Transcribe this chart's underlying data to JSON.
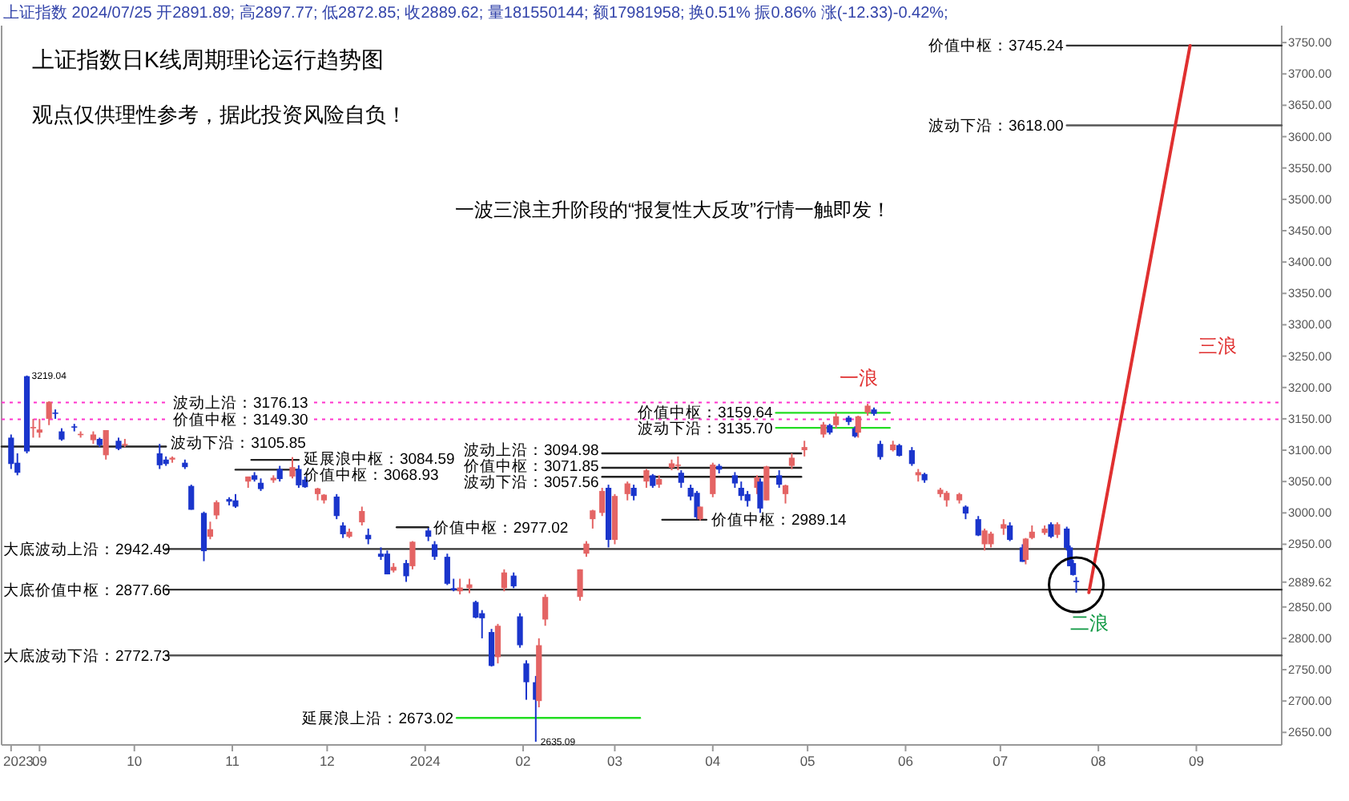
{
  "chart_data": {
    "type": "candlestick",
    "title": "上证指数日K线周期理论运行趋势图",
    "subtitle": "观点仅供理性参考，据此投资风险自负！",
    "x": [
      "2023-08-23",
      "2023-08-25",
      "2023-08-28",
      "2023-08-30",
      "2023-09-01",
      "2023-09-04",
      "2023-09-06",
      "2023-09-08",
      "2023-09-12",
      "2023-09-14",
      "2023-09-18",
      "2023-09-20",
      "2023-09-22",
      "2023-09-26",
      "2023-09-28",
      "2023-10-09",
      "2023-10-11",
      "2023-10-13",
      "2023-10-17",
      "2023-10-19",
      "2023-10-23",
      "2023-10-25",
      "2023-10-27",
      "2023-10-31",
      "2023-11-02",
      "2023-11-06",
      "2023-11-08",
      "2023-11-10",
      "2023-11-14",
      "2023-11-16",
      "2023-11-20",
      "2023-11-22",
      "2023-11-24",
      "2023-11-28",
      "2023-11-30",
      "2023-12-04",
      "2023-12-06",
      "2023-12-08",
      "2023-12-12",
      "2023-12-14",
      "2023-12-18",
      "2023-12-20",
      "2023-12-22",
      "2023-12-26",
      "2023-12-28",
      "2024-01-02",
      "2024-01-04",
      "2024-01-08",
      "2024-01-10",
      "2024-01-12",
      "2024-01-15",
      "2024-01-17",
      "2024-01-19",
      "2024-01-22",
      "2024-01-24",
      "2024-01-26",
      "2024-01-29",
      "2024-01-31",
      "2024-02-02",
      "2024-02-05",
      "2024-02-06",
      "2024-02-08",
      "2024-02-19",
      "2024-02-21",
      "2024-02-23",
      "2024-02-26",
      "2024-02-28",
      "2024-03-01",
      "2024-03-05",
      "2024-03-07",
      "2024-03-11",
      "2024-03-13",
      "2024-03-15",
      "2024-03-19",
      "2024-03-21",
      "2024-03-22",
      "2024-03-25",
      "2024-03-27",
      "2024-03-28",
      "2024-04-01",
      "2024-04-03",
      "2024-04-08",
      "2024-04-10",
      "2024-04-12",
      "2024-04-15",
      "2024-04-16",
      "2024-04-18",
      "2024-04-22",
      "2024-04-24",
      "2024-04-26",
      "2024-04-30",
      "2024-05-06",
      "2024-05-08",
      "2024-05-10",
      "2024-05-14",
      "2024-05-16",
      "2024-05-17",
      "2024-05-20",
      "2024-05-22",
      "2024-05-24",
      "2024-05-28",
      "2024-05-30",
      "2024-06-03",
      "2024-06-05",
      "2024-06-07",
      "2024-06-12",
      "2024-06-14",
      "2024-06-18",
      "2024-06-20",
      "2024-06-24",
      "2024-06-26",
      "2024-06-28",
      "2024-07-02",
      "2024-07-04",
      "2024-07-08",
      "2024-07-09",
      "2024-07-11",
      "2024-07-15",
      "2024-07-17",
      "2024-07-19",
      "2024-07-22",
      "2024-07-23",
      "2024-07-24",
      "2024-07-25"
    ],
    "ohlc": [
      [
        3120,
        3125,
        3070,
        3078
      ],
      [
        3080,
        3095,
        3060,
        3064
      ],
      [
        3218,
        3219.04,
        3095,
        3098
      ],
      [
        3135,
        3150,
        3120,
        3137
      ],
      [
        3128,
        3150,
        3120,
        3133
      ],
      [
        3150,
        3178,
        3140,
        3177
      ],
      [
        3160,
        3165,
        3150,
        3158
      ],
      [
        3130,
        3135,
        3115,
        3117
      ],
      [
        3138,
        3142,
        3130,
        3137
      ],
      [
        3125,
        3130,
        3120,
        3126
      ],
      [
        3116,
        3130,
        3110,
        3125
      ],
      [
        3118,
        3120,
        3105,
        3108
      ],
      [
        3092,
        3132,
        3085,
        3132
      ],
      [
        3115,
        3120,
        3100,
        3102
      ],
      [
        3108,
        3118,
        3105,
        3110
      ],
      [
        3095,
        3110,
        3070,
        3076
      ],
      [
        3085,
        3090,
        3075,
        3078
      ],
      [
        3085,
        3090,
        3080,
        3088
      ],
      [
        3080,
        3085,
        3070,
        3073
      ],
      [
        3043,
        3045,
        3005,
        3005
      ],
      [
        3000,
        3002,
        2923,
        2939
      ],
      [
        2962,
        2986,
        2958,
        2974
      ],
      [
        2996,
        3020,
        2990,
        3017
      ],
      [
        3022,
        3025,
        3012,
        3018
      ],
      [
        3020,
        3030,
        3008,
        3010
      ],
      [
        3050,
        3058,
        3040,
        3058
      ],
      [
        3060,
        3065,
        3050,
        3053
      ],
      [
        3048,
        3055,
        3035,
        3038
      ],
      [
        3052,
        3060,
        3048,
        3056
      ],
      [
        3070,
        3075,
        3050,
        3054
      ],
      [
        3058,
        3089,
        3055,
        3073
      ],
      [
        3070,
        3076,
        3040,
        3044
      ],
      [
        3053,
        3058,
        3040,
        3041
      ],
      [
        3030,
        3040,
        3020,
        3039
      ],
      [
        3020,
        3030,
        3015,
        3029
      ],
      [
        3026,
        3030,
        2990,
        2995
      ],
      [
        2980,
        2985,
        2960,
        2966
      ],
      [
        2962,
        2975,
        2960,
        2970
      ],
      [
        2985,
        3010,
        2980,
        3003
      ],
      [
        2965,
        2975,
        2950,
        2958
      ],
      [
        2935,
        2945,
        2925,
        2930
      ],
      [
        2935,
        2940,
        2902,
        2902
      ],
      [
        2908,
        2920,
        2905,
        2914
      ],
      [
        2920,
        2925,
        2890,
        2899
      ],
      [
        2915,
        2955,
        2910,
        2954
      ],
      [
        2972,
        2976,
        2955,
        2962
      ],
      [
        2950,
        2955,
        2925,
        2930
      ],
      [
        2930,
        2935,
        2885,
        2887
      ],
      [
        2880,
        2895,
        2875,
        2877
      ],
      [
        2875,
        2895,
        2870,
        2881
      ],
      [
        2880,
        2895,
        2872,
        2886
      ],
      [
        2858,
        2860,
        2832,
        2833
      ],
      [
        2840,
        2845,
        2800,
        2832
      ],
      [
        2810,
        2815,
        2755,
        2756
      ],
      [
        2770,
        2823,
        2760,
        2820
      ],
      [
        2880,
        2910,
        2875,
        2905
      ],
      [
        2900,
        2905,
        2880,
        2883
      ],
      [
        2835,
        2840,
        2785,
        2789
      ],
      [
        2760,
        2765,
        2702,
        2730
      ],
      [
        2730,
        2740,
        2635.09,
        2702
      ],
      [
        2700,
        2800,
        2690,
        2789
      ],
      [
        2830,
        2870,
        2820,
        2866
      ],
      [
        2866,
        2910,
        2860,
        2910
      ],
      [
        2935,
        2955,
        2930,
        2951
      ],
      [
        2990,
        3005,
        2975,
        3004
      ],
      [
        3000,
        3040,
        2995,
        3035
      ],
      [
        3040,
        3045,
        2945,
        2957
      ],
      [
        2957,
        3030,
        2950,
        3027
      ],
      [
        3030,
        3050,
        3020,
        3047
      ],
      [
        3040,
        3045,
        3020,
        3027
      ],
      [
        3050,
        3070,
        3040,
        3068
      ],
      [
        3060,
        3062,
        3040,
        3043
      ],
      [
        3045,
        3060,
        3040,
        3054
      ],
      [
        3072,
        3085,
        3068,
        3079
      ],
      [
        3075,
        3090,
        3068,
        3077
      ],
      [
        3064,
        3068,
        3040,
        3048
      ],
      [
        3040,
        3045,
        3020,
        3026
      ],
      [
        3032,
        3035,
        2990,
        2993
      ],
      [
        2990,
        3010,
        2988,
        3010
      ],
      [
        3030,
        3080,
        3025,
        3077
      ],
      [
        3075,
        3078,
        3063,
        3069
      ],
      [
        3060,
        3065,
        3040,
        3047
      ],
      [
        3040,
        3050,
        3020,
        3027
      ],
      [
        3030,
        3035,
        3010,
        3019
      ],
      [
        3040,
        3060,
        3030,
        3057
      ],
      [
        3050,
        3055,
        3000,
        3007
      ],
      [
        3020,
        3075,
        3020,
        3074
      ],
      [
        3060,
        3068,
        3040,
        3045
      ],
      [
        3030,
        3045,
        3015,
        3044
      ],
      [
        3075,
        3095,
        3070,
        3088
      ],
      [
        3100,
        3115,
        3090,
        3105
      ],
      [
        3125,
        3145,
        3120,
        3141
      ],
      [
        3140,
        3142,
        3125,
        3128
      ],
      [
        3140,
        3160,
        3135,
        3154
      ],
      [
        3152,
        3155,
        3140,
        3145
      ],
      [
        3135,
        3138,
        3120,
        3122
      ],
      [
        3128,
        3155,
        3120,
        3154
      ],
      [
        3160,
        3174,
        3155,
        3171
      ],
      [
        3165,
        3168,
        3155,
        3158
      ],
      [
        3110,
        3115,
        3085,
        3089
      ],
      [
        3100,
        3115,
        3098,
        3109
      ],
      [
        3108,
        3110,
        3090,
        3091
      ],
      [
        3100,
        3105,
        3075,
        3078
      ],
      [
        3060,
        3070,
        3050,
        3065
      ],
      [
        3062,
        3064,
        3048,
        3052
      ],
      [
        3030,
        3040,
        3025,
        3037
      ],
      [
        3020,
        3035,
        3010,
        3032
      ],
      [
        3020,
        3032,
        3015,
        3030
      ],
      [
        3010,
        3012,
        2990,
        2999
      ],
      [
        2990,
        2995,
        2963,
        2964
      ],
      [
        2950,
        2975,
        2940,
        2972
      ],
      [
        2950,
        2970,
        2945,
        2967
      ],
      [
        2975,
        2990,
        2965,
        2982
      ],
      [
        2980,
        2985,
        2955,
        2957
      ],
      [
        2945,
        2950,
        2922,
        2922
      ],
      [
        2925,
        2960,
        2918,
        2959
      ],
      [
        2960,
        2980,
        2958,
        2970
      ],
      [
        2968,
        2980,
        2965,
        2975
      ],
      [
        2982,
        2985,
        2960,
        2962
      ],
      [
        2965,
        2985,
        2960,
        2982
      ],
      [
        2975,
        2978,
        2940,
        2944
      ],
      [
        2945,
        2948,
        2915,
        2915
      ],
      [
        2920,
        2925,
        2900,
        2901
      ],
      [
        2891.89,
        2897.77,
        2872.85,
        2889.62
      ]
    ],
    "series": [
      {
        "type": "line",
        "x": [
          "2023-08-20",
          "2023-10-11"
        ],
        "values": [
          3105.85,
          3105.85
        ],
        "color": "#222222"
      },
      {
        "type": "line",
        "x": [
          "2023-11-07",
          "2023-11-22"
        ],
        "values": [
          3084.59,
          3084.59
        ],
        "color": "#222222"
      },
      {
        "type": "line",
        "x": [
          "2023-11-02",
          "2023-11-22"
        ],
        "values": [
          3068.93,
          3068.93
        ],
        "color": "#222222"
      },
      {
        "type": "line",
        "x": [
          "2023-12-23",
          "2024-01-02"
        ],
        "values": [
          2977.02,
          2977.02
        ],
        "color": "#222222"
      },
      {
        "type": "line",
        "x": [
          "2024-02-26",
          "2024-04-29"
        ],
        "values": [
          3094.98,
          3094.98
        ],
        "color": "#222222"
      },
      {
        "type": "line",
        "x": [
          "2024-02-26",
          "2024-04-29"
        ],
        "values": [
          3071.85,
          3071.85
        ],
        "color": "#222222"
      },
      {
        "type": "line",
        "x": [
          "2024-02-26",
          "2024-04-29"
        ],
        "values": [
          3057.56,
          3057.56
        ],
        "color": "#222222"
      },
      {
        "type": "line",
        "x": [
          "2024-03-16",
          "2024-03-30"
        ],
        "values": [
          2989.14,
          2989.14
        ],
        "color": "#222222"
      },
      {
        "type": "line",
        "x": [
          "2024-04-21",
          "2024-05-27"
        ],
        "values": [
          3159.64,
          3159.64
        ],
        "color": "#22dd22"
      },
      {
        "type": "line",
        "x": [
          "2024-04-21",
          "2024-05-27"
        ],
        "values": [
          3135.7,
          3135.7
        ],
        "color": "#22dd22"
      },
      {
        "type": "line",
        "x": [
          "2024-01-11",
          "2024-03-09"
        ],
        "values": [
          2673.02,
          2673.02
        ],
        "color": "#22dd22"
      },
      {
        "type": "line",
        "x": [
          "2023-10-11",
          "2024-09-28"
        ],
        "values": [
          2942.49,
          2942.49
        ],
        "color": "#333333"
      },
      {
        "type": "line",
        "x": [
          "2023-10-11",
          "2024-09-28"
        ],
        "values": [
          2877.66,
          2877.66
        ],
        "color": "#333333"
      },
      {
        "type": "line",
        "x": [
          "2023-10-11",
          "2024-09-28"
        ],
        "values": [
          2772.73,
          2772.73
        ],
        "color": "#555555"
      },
      {
        "type": "line",
        "x": [
          "2024-07-22",
          "2024-09-28"
        ],
        "values": [
          3745.24,
          3745.24
        ],
        "color": "#333333"
      },
      {
        "type": "line",
        "x": [
          "2024-07-22",
          "2024-09-28"
        ],
        "values": [
          3618.0,
          3618.0
        ],
        "color": "#555555"
      },
      {
        "type": "line",
        "x": [
          "2024-07-29",
          "2024-08-30"
        ],
        "values": [
          2873,
          3745
        ],
        "color": "#e03030"
      }
    ],
    "ref_lines": [
      {
        "axis": "y",
        "value": 3176.13,
        "label": "波动上沿：3176.13",
        "color": "#ff33cc",
        "line_style": "dotted"
      },
      {
        "axis": "y",
        "value": 3149.3,
        "label": "价值中枢：3149.30",
        "color": "#ff33cc",
        "line_style": "dotted"
      }
    ],
    "annotations": [
      "上证指数 2024/07/25 开2891.89; 高2897.77; 低2872.85; 收2889.62; 量181550144; 额17981958; 换0.51% 振0.86% 涨(-12.33)-0.42%;",
      "一波三浪主升阶段的“报复性大反攻”行情一触即发！",
      {
        "text": "波动下沿：3105.85",
        "x": "2023-10-11",
        "y": 3105.85
      },
      {
        "text": "延展浪中枢：3084.59",
        "x": "2023-11-22",
        "y": 3084.59
      },
      {
        "text": "价值中枢：3068.93",
        "x": "2023-11-22",
        "y": 3068.93
      },
      {
        "text": "价值中枢：2977.02",
        "x": "2024-01-02",
        "y": 2977.02
      },
      {
        "text": "波动上沿：3094.98",
        "x": "2024-02-26",
        "y": 3094.98
      },
      {
        "text": "价值中枢：3071.85",
        "x": "2024-02-26",
        "y": 3071.85
      },
      {
        "text": "波动下沿：3057.56",
        "x": "2024-02-26",
        "y": 3057.56
      },
      {
        "text": "价值中枢：2989.14",
        "x": "2024-03-30",
        "y": 2989.14
      },
      {
        "text": "价值中枢：3159.64",
        "x": "2024-04-21",
        "y": 3159.64
      },
      {
        "text": "波动下沿：3135.70",
        "x": "2024-04-21",
        "y": 3135.7
      },
      {
        "text": "延展浪上沿：2673.02",
        "x": "2024-01-11",
        "y": 2673.02
      },
      {
        "text": "大底波动上沿：2942.49",
        "x": "2023-10-11",
        "y": 2942.49
      },
      {
        "text": "大底价值中枢：2877.66",
        "x": "2023-10-11",
        "y": 2877.66
      },
      {
        "text": "大底波动下沿：2772.73",
        "x": "2023-10-11",
        "y": 2772.73
      },
      {
        "text": "价值中枢：3745.24",
        "x": "2024-07-22",
        "y": 3745.24
      },
      {
        "text": "波动下沿：3618.00",
        "x": "2024-07-22",
        "y": 3618.0
      },
      {
        "text": "3219.04",
        "x": "2023-08-28",
        "y": 3219.04
      },
      {
        "text": "2635.09",
        "x": "2024-02-05",
        "y": 2635.09
      },
      "一浪",
      "二浪",
      "三浪"
    ],
    "xlim": [
      "2023-08-20",
      "2024-09-28"
    ],
    "xticks": [
      {
        "value": "2023-08-23",
        "label": "2023"
      },
      {
        "value": "2023-09-01",
        "label": "09"
      },
      {
        "value": "2023-10-01",
        "label": "10"
      },
      {
        "value": "2023-11-01",
        "label": "11"
      },
      {
        "value": "2023-12-01",
        "label": "12"
      },
      {
        "value": "2024-01-01",
        "label": "2024"
      },
      {
        "value": "2024-02-01",
        "label": "02"
      },
      {
        "value": "2024-03-01",
        "label": "03"
      },
      {
        "value": "2024-04-01",
        "label": "04"
      },
      {
        "value": "2024-05-01",
        "label": "05"
      },
      {
        "value": "2024-06-01",
        "label": "06"
      },
      {
        "value": "2024-07-01",
        "label": "07"
      },
      {
        "value": "2024-08-01",
        "label": "08"
      },
      {
        "value": "2024-09-01",
        "label": "09"
      }
    ],
    "ylim": [
      2630,
      3777
    ],
    "yticks": [
      {
        "value": 2650,
        "label": "2650.00"
      },
      {
        "value": 2700,
        "label": "2700.00"
      },
      {
        "value": 2750,
        "label": "2750.00"
      },
      {
        "value": 2800,
        "label": "2800.00"
      },
      {
        "value": 2850,
        "label": "2850.00"
      },
      {
        "value": 2889.62,
        "label": "2889.62"
      },
      {
        "value": 2950,
        "label": "2950.00"
      },
      {
        "value": 3000,
        "label": "3000.00"
      },
      {
        "value": 3050,
        "label": "3050.00"
      },
      {
        "value": 3100,
        "label": "3100.00"
      },
      {
        "value": 3150,
        "label": "3150.00"
      },
      {
        "value": 3200,
        "label": "3200.00"
      },
      {
        "value": 3250,
        "label": "3250.00"
      },
      {
        "value": 3300,
        "label": "3300.00"
      },
      {
        "value": 3350,
        "label": "3350.00"
      },
      {
        "value": 3400,
        "label": "3400.00"
      },
      {
        "value": 3450,
        "label": "3450.00"
      },
      {
        "value": 3500,
        "label": "3500.00"
      },
      {
        "value": 3550,
        "label": "3550.00"
      },
      {
        "value": 3600,
        "label": "3600.00"
      },
      {
        "value": 3650,
        "label": "3650.00"
      },
      {
        "value": 3700,
        "label": "3700.00"
      },
      {
        "value": 3750,
        "label": "3750.00"
      }
    ]
  }
}
